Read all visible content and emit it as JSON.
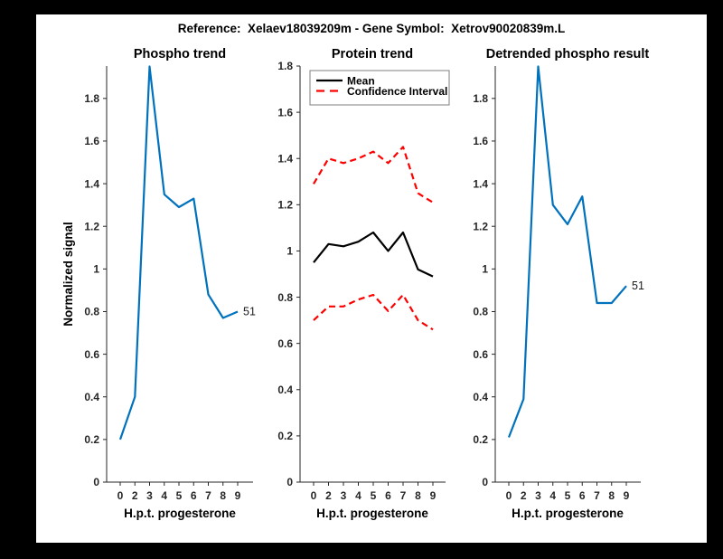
{
  "figure": {
    "title": "Reference:  Xelaev18039209m - Gene Symbol:  Xetrov90020839m.L"
  },
  "colors": {
    "line_blue": "#0072BD",
    "line_red": "#FF0000",
    "line_black": "#000000",
    "axis": "#262626",
    "background": "#000000",
    "canvas": "#FFFFFF",
    "legend_border": "#7F7F7F"
  },
  "chart_data": [
    {
      "type": "line",
      "title": "Phospho trend",
      "xlabel": "H.p.t. progesterone",
      "ylabel": "Normalized signal",
      "x_tick_labels": [
        "0",
        "2",
        "3",
        "4",
        "5",
        "6",
        "7",
        "8",
        "9"
      ],
      "y_tick_labels": [
        "0",
        "0.2",
        "0.4",
        "0.6",
        "0.8",
        "1",
        "1.2",
        "1.4",
        "1.6",
        "1.8"
      ],
      "ylim": [
        0,
        1.952
      ],
      "grid": false,
      "series": [
        {
          "name": "phospho-signal",
          "color": "#0072BD",
          "style": "solid",
          "values": [
            0.2,
            0.4,
            1.95,
            1.35,
            1.29,
            1.33,
            0.88,
            0.77,
            0.8
          ]
        }
      ],
      "end_label": "51"
    },
    {
      "type": "line",
      "title": "Protein trend",
      "xlabel": "H.p.t. progesterone",
      "ylabel": "",
      "x_tick_labels": [
        "0",
        "2",
        "3",
        "4",
        "5",
        "6",
        "7",
        "8",
        "9"
      ],
      "y_tick_labels": [
        "0",
        "0.2",
        "0.4",
        "0.6",
        "0.8",
        "1",
        "1.2",
        "1.4",
        "1.6",
        "1.8"
      ],
      "ylim": [
        0,
        1.8
      ],
      "grid": false,
      "legend_labels": [
        "Mean",
        "Confidence Interval"
      ],
      "legend_position": "northwest",
      "series": [
        {
          "name": "mean",
          "color": "#000000",
          "style": "solid",
          "values": [
            0.95,
            1.03,
            1.02,
            1.04,
            1.08,
            1.0,
            1.08,
            0.92,
            0.89
          ]
        },
        {
          "name": "confidence-upper",
          "color": "#FF0000",
          "style": "dashed",
          "values": [
            1.29,
            1.4,
            1.38,
            1.4,
            1.43,
            1.38,
            1.45,
            1.25,
            1.21
          ]
        },
        {
          "name": "confidence-lower",
          "color": "#FF0000",
          "style": "dashed",
          "values": [
            0.7,
            0.76,
            0.76,
            0.79,
            0.81,
            0.74,
            0.81,
            0.7,
            0.66
          ]
        }
      ]
    },
    {
      "type": "line",
      "title": "Detrended phospho result",
      "xlabel": "H.p.t. progesterone",
      "ylabel": "",
      "x_tick_labels": [
        "0",
        "2",
        "3",
        "4",
        "5",
        "6",
        "7",
        "8",
        "9"
      ],
      "y_tick_labels": [
        "0",
        "0.2",
        "0.4",
        "0.6",
        "0.8",
        "1",
        "1.2",
        "1.4",
        "1.6",
        "1.8"
      ],
      "ylim": [
        0,
        1.952
      ],
      "grid": false,
      "series": [
        {
          "name": "detrended-signal",
          "color": "#0072BD",
          "style": "solid",
          "values": [
            0.21,
            0.39,
            1.95,
            1.3,
            1.21,
            1.34,
            0.84,
            0.84,
            0.92
          ]
        }
      ],
      "end_label": "51"
    }
  ]
}
